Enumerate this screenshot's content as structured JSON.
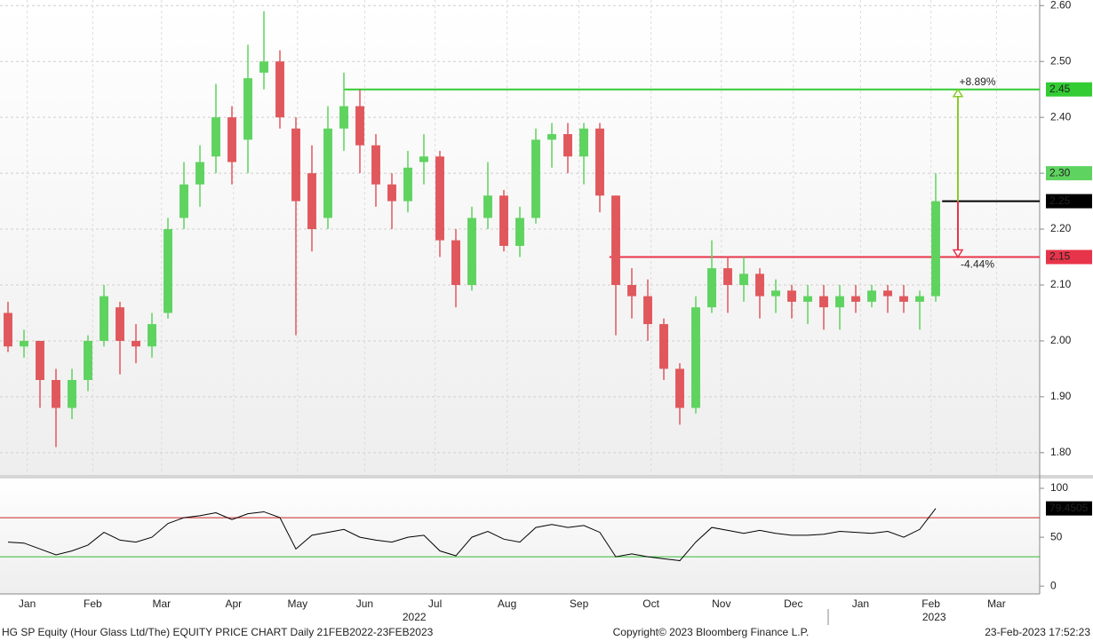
{
  "chart_data": [
    {
      "type": "candlestick",
      "up_color": "#5fd35f",
      "down_color": "#e0585c",
      "xlim": [
        -0.5,
        64.5
      ],
      "ylim": [
        1.76,
        2.61
      ],
      "yticks": [
        {
          "value": 1.8,
          "label": "1.80"
        },
        {
          "value": 1.9,
          "label": "1.90"
        },
        {
          "value": 2.0,
          "label": "2.00"
        },
        {
          "value": 2.1,
          "label": "2.10"
        },
        {
          "value": 2.2,
          "label": "2.20"
        },
        {
          "value": 2.3,
          "label": "2.30"
        },
        {
          "value": 2.4,
          "label": "2.40"
        },
        {
          "value": 2.5,
          "label": "2.50"
        },
        {
          "value": 2.6,
          "label": "2.60"
        }
      ],
      "xticks": [
        {
          "value": 1.2,
          "label": "Jan"
        },
        {
          "value": 5.3,
          "label": "Feb"
        },
        {
          "value": 9.6,
          "label": "Mar"
        },
        {
          "value": 14.1,
          "label": "Apr"
        },
        {
          "value": 18.1,
          "label": "May"
        },
        {
          "value": 22.3,
          "label": "Jun"
        },
        {
          "value": 26.7,
          "label": "Jul"
        },
        {
          "value": 31.2,
          "label": "Aug"
        },
        {
          "value": 35.7,
          "label": "Sep"
        },
        {
          "value": 40.2,
          "label": "Oct"
        },
        {
          "value": 44.6,
          "label": "Nov"
        },
        {
          "value": 49.1,
          "label": "Dec"
        },
        {
          "value": 53.3,
          "label": "Jan"
        },
        {
          "value": 57.7,
          "label": "Feb"
        },
        {
          "value": 61.8,
          "label": "Mar"
        }
      ],
      "year_labels": [
        {
          "value": 25.4,
          "label": "2022"
        },
        {
          "value": 57.9,
          "label": "2023"
        }
      ],
      "grid": true,
      "ohlc": [
        [
          2.05,
          2.07,
          1.98,
          1.99
        ],
        [
          1.99,
          2.02,
          1.97,
          2.0
        ],
        [
          2.0,
          2.0,
          1.88,
          1.93
        ],
        [
          1.93,
          1.95,
          1.81,
          1.88
        ],
        [
          1.88,
          1.95,
          1.86,
          1.93
        ],
        [
          1.93,
          2.01,
          1.91,
          2.0
        ],
        [
          2.0,
          2.1,
          1.99,
          2.08
        ],
        [
          2.06,
          2.07,
          1.94,
          2.0
        ],
        [
          2.0,
          2.03,
          1.96,
          1.99
        ],
        [
          1.99,
          2.05,
          1.97,
          2.03
        ],
        [
          2.05,
          2.22,
          2.04,
          2.2
        ],
        [
          2.22,
          2.32,
          2.2,
          2.28
        ],
        [
          2.28,
          2.35,
          2.24,
          2.32
        ],
        [
          2.33,
          2.46,
          2.3,
          2.4
        ],
        [
          2.4,
          2.42,
          2.28,
          2.32
        ],
        [
          2.36,
          2.53,
          2.3,
          2.47
        ],
        [
          2.48,
          2.59,
          2.45,
          2.5
        ],
        [
          2.5,
          2.52,
          2.38,
          2.4
        ],
        [
          2.38,
          2.4,
          2.01,
          2.25
        ],
        [
          2.3,
          2.35,
          2.16,
          2.2
        ],
        [
          2.22,
          2.42,
          2.2,
          2.38
        ],
        [
          2.38,
          2.48,
          2.34,
          2.42
        ],
        [
          2.42,
          2.45,
          2.3,
          2.35
        ],
        [
          2.35,
          2.37,
          2.24,
          2.28
        ],
        [
          2.28,
          2.3,
          2.2,
          2.25
        ],
        [
          2.25,
          2.34,
          2.23,
          2.31
        ],
        [
          2.32,
          2.37,
          2.28,
          2.33
        ],
        [
          2.33,
          2.34,
          2.15,
          2.18
        ],
        [
          2.18,
          2.2,
          2.06,
          2.1
        ],
        [
          2.1,
          2.24,
          2.09,
          2.22
        ],
        [
          2.22,
          2.32,
          2.2,
          2.26
        ],
        [
          2.26,
          2.27,
          2.16,
          2.17
        ],
        [
          2.17,
          2.24,
          2.15,
          2.22
        ],
        [
          2.22,
          2.38,
          2.21,
          2.36
        ],
        [
          2.36,
          2.39,
          2.31,
          2.37
        ],
        [
          2.37,
          2.39,
          2.3,
          2.33
        ],
        [
          2.33,
          2.39,
          2.28,
          2.38
        ],
        [
          2.38,
          2.39,
          2.23,
          2.26
        ],
        [
          2.26,
          2.26,
          2.01,
          2.1
        ],
        [
          2.1,
          2.13,
          2.04,
          2.08
        ],
        [
          2.08,
          2.11,
          2.0,
          2.03
        ],
        [
          2.03,
          2.04,
          1.93,
          1.95
        ],
        [
          1.95,
          1.96,
          1.85,
          1.88
        ],
        [
          1.88,
          2.08,
          1.87,
          2.06
        ],
        [
          2.06,
          2.18,
          2.05,
          2.13
        ],
        [
          2.13,
          2.15,
          2.05,
          2.1
        ],
        [
          2.1,
          2.15,
          2.07,
          2.12
        ],
        [
          2.12,
          2.13,
          2.04,
          2.08
        ],
        [
          2.08,
          2.11,
          2.05,
          2.09
        ],
        [
          2.09,
          2.1,
          2.04,
          2.07
        ],
        [
          2.07,
          2.1,
          2.03,
          2.08
        ],
        [
          2.08,
          2.1,
          2.02,
          2.06
        ],
        [
          2.06,
          2.1,
          2.02,
          2.08
        ],
        [
          2.08,
          2.1,
          2.05,
          2.07
        ],
        [
          2.07,
          2.1,
          2.06,
          2.09
        ],
        [
          2.09,
          2.1,
          2.05,
          2.08
        ],
        [
          2.08,
          2.1,
          2.05,
          2.07
        ],
        [
          2.07,
          2.09,
          2.02,
          2.08
        ],
        [
          2.08,
          2.3,
          2.07,
          2.25
        ]
      ],
      "levels": [
        {
          "value": 2.45,
          "color": "#33cc33",
          "from": 21
        },
        {
          "value": 2.15,
          "color": "#e8344a",
          "from": 37.6
        },
        {
          "value": 2.25,
          "color": "#000000",
          "from": 58.4
        }
      ],
      "changes": [
        {
          "value": 2.45,
          "label": "+8.89%",
          "color": "#8acb2a"
        },
        {
          "value": 2.15,
          "label": "-4.44%",
          "color": "#e8344a"
        }
      ],
      "tags": [
        {
          "value": 2.45,
          "label": "2.45",
          "color": "#33cc33",
          "text_color": "#000000"
        },
        {
          "value": 2.3,
          "label": "2.30",
          "color": "#5fd35f",
          "text_color": "#000000"
        },
        {
          "value": 2.25,
          "label": "2.25",
          "color": "#000000",
          "text_color": "#ffffff"
        },
        {
          "value": 2.15,
          "label": "2.15",
          "color": "#e8344a",
          "text_color": "#000000"
        }
      ]
    },
    {
      "type": "line",
      "xlim": [
        -0.5,
        64.5
      ],
      "ylim": [
        -8,
        110
      ],
      "yticks": [
        0,
        50,
        100
      ],
      "color": "#000000",
      "values": [
        45,
        44,
        38,
        32,
        36,
        42,
        55,
        47,
        45,
        50,
        64,
        70,
        72,
        75,
        68,
        74,
        76,
        70,
        38,
        52,
        55,
        58,
        50,
        47,
        45,
        50,
        52,
        36,
        31,
        50,
        56,
        48,
        45,
        60,
        63,
        60,
        62,
        55,
        30,
        33,
        30,
        28,
        26,
        45,
        60,
        57,
        54,
        57,
        54,
        52,
        52,
        53,
        56,
        55,
        54,
        56,
        50,
        58,
        79.4505
      ],
      "levels": [
        {
          "value": 70,
          "color": "#cc2222"
        },
        {
          "value": 30,
          "color": "#33bb33"
        }
      ],
      "tags": [
        {
          "value": 79.4505,
          "label": "79.4505",
          "color": "#000000",
          "text_color": "#ffffff"
        }
      ]
    }
  ],
  "footer": {
    "left": "HG SP Equity (Hour Glass Ltd/The) EQUITY PRICE CHART  Daily 21FEB2022-23FEB2023",
    "center": "Copyright© 2023 Bloomberg Finance L.P.",
    "right": "23-Feb-2023 17:52:23"
  }
}
